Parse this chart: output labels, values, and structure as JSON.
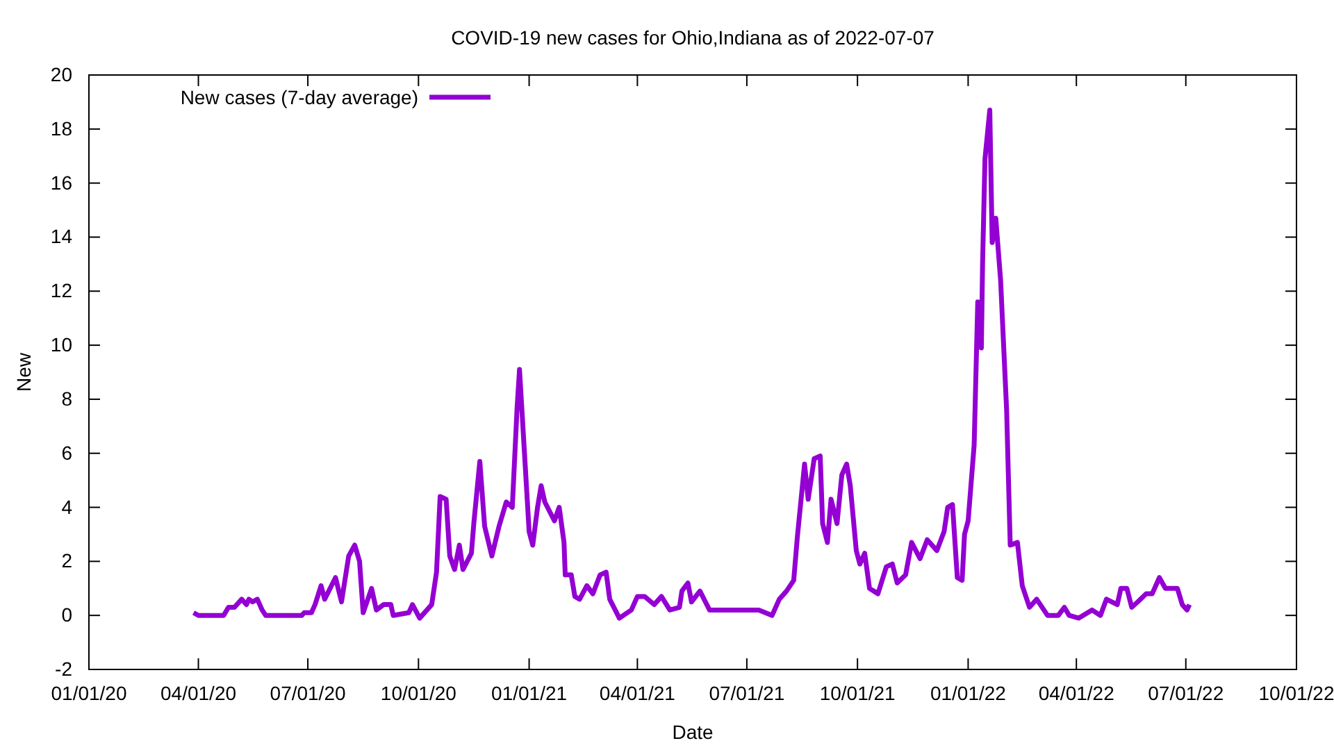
{
  "chart_data": {
    "type": "line",
    "title": "COVID-19 new cases for Ohio,Indiana as of 2022-07-07",
    "xlabel": "Date",
    "ylabel": "New",
    "x": [
      "2020-03-28",
      "2020-04-01",
      "2020-04-22",
      "2020-04-26",
      "2020-05-01",
      "2020-05-07",
      "2020-05-11",
      "2020-05-13",
      "2020-05-16",
      "2020-05-20",
      "2020-05-24",
      "2020-05-27",
      "2020-06-26",
      "2020-06-28",
      "2020-07-04",
      "2020-07-07",
      "2020-07-12",
      "2020-07-15",
      "2020-07-24",
      "2020-07-29",
      "2020-08-04",
      "2020-08-09",
      "2020-08-13",
      "2020-08-16",
      "2020-08-23",
      "2020-08-27",
      "2020-09-02",
      "2020-09-08",
      "2020-09-10",
      "2020-09-23",
      "2020-09-26",
      "2020-10-02",
      "2020-10-12",
      "2020-10-16",
      "2020-10-19",
      "2020-10-24",
      "2020-10-27",
      "2020-10-31",
      "2020-11-04",
      "2020-11-07",
      "2020-11-14",
      "2020-11-16",
      "2020-11-21",
      "2020-11-25",
      "2020-12-01",
      "2020-12-07",
      "2020-12-13",
      "2020-12-18",
      "2020-12-22",
      "2020-12-24",
      "2021-01-01",
      "2021-01-04",
      "2021-01-08",
      "2021-01-11",
      "2021-01-14",
      "2021-01-22",
      "2021-01-26",
      "2021-01-30",
      "2021-01-31",
      "2021-02-05",
      "2021-02-08",
      "2021-02-12",
      "2021-02-18",
      "2021-02-23",
      "2021-03-01",
      "2021-03-06",
      "2021-03-09",
      "2021-03-17",
      "2021-03-27",
      "2021-04-01",
      "2021-04-07",
      "2021-04-15",
      "2021-04-21",
      "2021-04-28",
      "2021-05-06",
      "2021-05-08",
      "2021-05-13",
      "2021-05-16",
      "2021-05-23",
      "2021-05-31",
      "2021-06-07",
      "2021-06-21",
      "2021-07-11",
      "2021-07-22",
      "2021-07-28",
      "2021-08-03",
      "2021-08-09",
      "2021-08-12",
      "2021-08-18",
      "2021-08-21",
      "2021-08-26",
      "2021-08-31",
      "2021-09-02",
      "2021-09-06",
      "2021-09-09",
      "2021-09-14",
      "2021-09-18",
      "2021-09-22",
      "2021-09-25",
      "2021-09-30",
      "2021-10-03",
      "2021-10-07",
      "2021-10-11",
      "2021-10-18",
      "2021-10-25",
      "2021-10-30",
      "2021-11-03",
      "2021-11-10",
      "2021-11-15",
      "2021-11-22",
      "2021-11-28",
      "2021-12-06",
      "2021-12-12",
      "2021-12-15",
      "2021-12-19",
      "2021-12-23",
      "2021-12-27",
      "2021-12-29",
      "2022-01-01",
      "2022-01-06",
      "2022-01-09",
      "2022-01-12",
      "2022-01-13",
      "2022-01-15",
      "2022-01-19",
      "2022-01-21",
      "2022-01-24",
      "2022-01-28",
      "2022-02-02",
      "2022-02-05",
      "2022-02-11",
      "2022-02-15",
      "2022-02-21",
      "2022-02-27",
      "2022-03-08",
      "2022-03-17",
      "2022-03-22",
      "2022-03-26",
      "2022-04-03",
      "2022-04-14",
      "2022-04-21",
      "2022-04-26",
      "2022-05-05",
      "2022-05-08",
      "2022-05-13",
      "2022-05-17",
      "2022-05-22",
      "2022-05-29",
      "2022-06-03",
      "2022-06-09",
      "2022-06-14",
      "2022-06-24",
      "2022-06-28",
      "2022-07-02",
      "2022-07-04"
    ],
    "series": [
      {
        "name": "New cases (7-day average)",
        "color": "#9400d3",
        "values": [
          0.1,
          0,
          0,
          0.3,
          0.3,
          0.6,
          0.4,
          0.6,
          0.5,
          0.6,
          0.2,
          0,
          0,
          0.1,
          0.1,
          0.4,
          1.1,
          0.6,
          1.4,
          0.5,
          2.2,
          2.6,
          2,
          0.1,
          1,
          0.2,
          0.4,
          0.4,
          0,
          0.1,
          0.4,
          -0.1,
          0.4,
          1.6,
          4.4,
          4.3,
          2.2,
          1.7,
          2.6,
          1.7,
          2.3,
          3.4,
          5.7,
          3.3,
          2.2,
          3.3,
          4.2,
          4,
          7.7,
          9.1,
          3.1,
          2.6,
          4,
          4.8,
          4.2,
          3.5,
          4,
          2.7,
          1.5,
          1.5,
          0.7,
          0.6,
          1.1,
          0.8,
          1.5,
          1.6,
          0.6,
          -0.1,
          0.2,
          0.7,
          0.7,
          0.4,
          0.7,
          0.2,
          0.3,
          0.9,
          1.2,
          0.5,
          0.9,
          0.2,
          0.2,
          0.2,
          0.2,
          0,
          0.6,
          0.9,
          1.3,
          2.9,
          5.6,
          4.3,
          5.8,
          5.9,
          3.4,
          2.7,
          4.3,
          3.4,
          5.2,
          5.6,
          4.8,
          2.4,
          1.9,
          2.3,
          1,
          0.8,
          1.8,
          1.9,
          1.2,
          1.5,
          2.7,
          2.1,
          2.8,
          2.4,
          3.1,
          4,
          4.1,
          1.4,
          1.3,
          3,
          3.5,
          6.3,
          11.6,
          9.9,
          13,
          16.9,
          18.7,
          13.8,
          14.7,
          12.4,
          7.6,
          2.6,
          2.7,
          1.1,
          0.3,
          0.6,
          0,
          0,
          0.3,
          0,
          -0.1,
          0.2,
          0,
          0.6,
          0.4,
          1,
          1,
          0.3,
          0.5,
          0.8,
          0.8,
          1.4,
          1,
          1,
          0.4,
          0.2,
          0.4
        ]
      }
    ],
    "xlim": [
      "2020-01-01",
      "2022-10-01"
    ],
    "xticks": [
      {
        "value": "2020-01-01",
        "label": "01/01/20"
      },
      {
        "value": "2020-04-01",
        "label": "04/01/20"
      },
      {
        "value": "2020-07-01",
        "label": "07/01/20"
      },
      {
        "value": "2020-10-01",
        "label": "10/01/20"
      },
      {
        "value": "2021-01-01",
        "label": "01/01/21"
      },
      {
        "value": "2021-04-01",
        "label": "04/01/21"
      },
      {
        "value": "2021-07-01",
        "label": "07/01/21"
      },
      {
        "value": "2021-10-01",
        "label": "10/01/21"
      },
      {
        "value": "2022-01-01",
        "label": "01/01/22"
      },
      {
        "value": "2022-04-01",
        "label": "04/01/22"
      },
      {
        "value": "2022-07-01",
        "label": "07/01/22"
      },
      {
        "value": "2022-10-01",
        "label": "10/01/22"
      }
    ],
    "ylim": [
      -2,
      20
    ],
    "yticks": [
      -2,
      0,
      2,
      4,
      6,
      8,
      10,
      12,
      14,
      16,
      18,
      20
    ],
    "legend": "top left",
    "grid": false,
    "marker": "none",
    "line_style": "solid"
  }
}
